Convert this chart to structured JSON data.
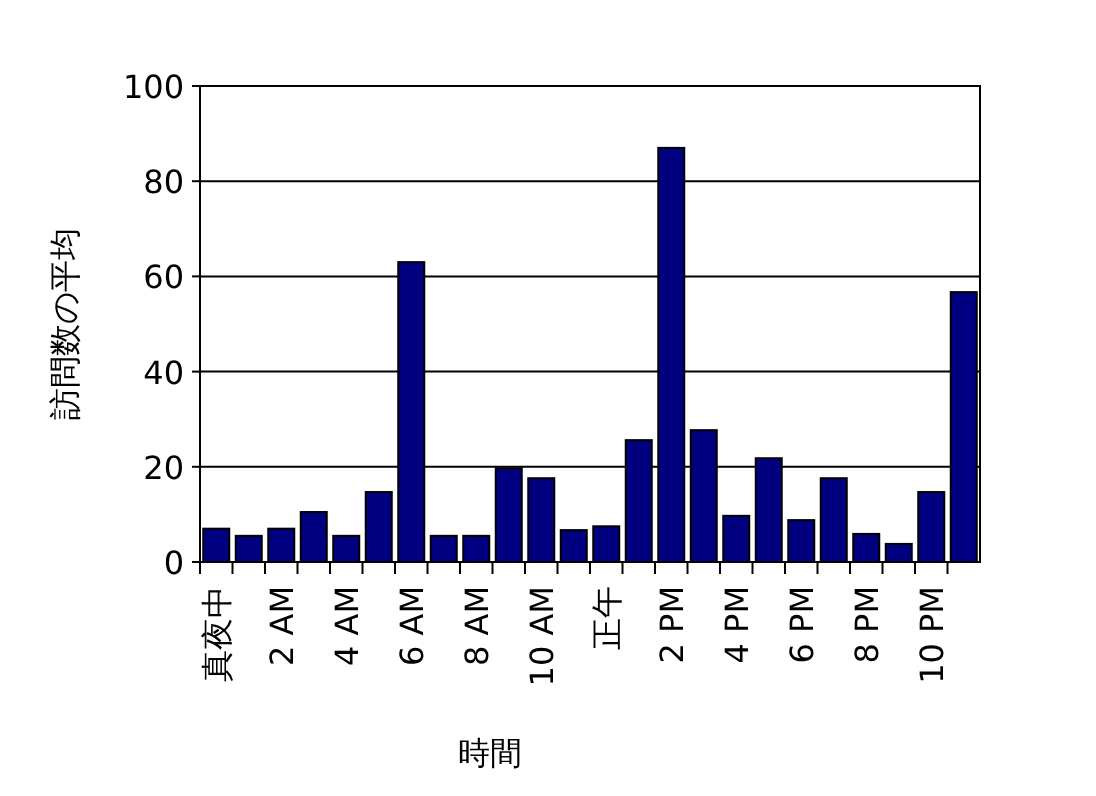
{
  "chart_data": {
    "type": "bar",
    "xlabel": "時間",
    "ylabel": "訪問数の平均",
    "categories": [
      "真夜中",
      null,
      "2 AM",
      null,
      "4 AM",
      null,
      "6 AM",
      null,
      "8 AM",
      null,
      "10 AM",
      null,
      "正午",
      null,
      "2 PM",
      null,
      "4 PM",
      null,
      "6 PM",
      null,
      "8 PM",
      null,
      "10 PM",
      null
    ],
    "values": [
      7,
      5.5,
      7,
      10.5,
      5.5,
      14.7,
      63,
      5.5,
      5.5,
      19.7,
      17.6,
      6.7,
      7.5,
      25.6,
      87,
      27.7,
      9.7,
      21.8,
      8.8,
      17.6,
      5.9,
      3.8,
      14.7,
      56.7
    ],
    "color": "#000080",
    "ylim": [
      0,
      100
    ],
    "yticks": [
      0,
      20,
      40,
      60,
      80,
      100
    ],
    "grid": "y"
  }
}
